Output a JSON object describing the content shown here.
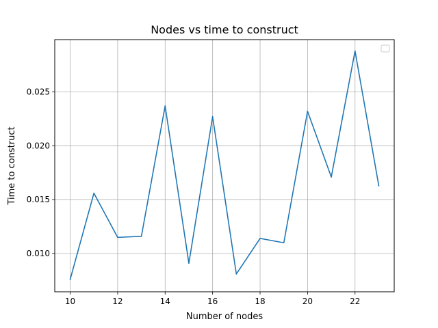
{
  "chart_data": {
    "type": "line",
    "title": "Nodes vs time to construct",
    "xlabel": "Number of nodes",
    "ylabel": "Time to construct",
    "xlim": [
      9.35,
      23.65
    ],
    "ylim": [
      0.00645,
      0.02985
    ],
    "xticks": [
      10,
      12,
      14,
      16,
      18,
      20,
      22
    ],
    "yticks": [
      0.01,
      0.015,
      0.02,
      0.025
    ],
    "ytick_labels": [
      "0.010",
      "0.015",
      "0.020",
      "0.025"
    ],
    "grid": true,
    "legend": {
      "placement": "top-right",
      "entries": []
    },
    "series": [
      {
        "color": "#1f77b4",
        "x": [
          10,
          11,
          12,
          13,
          14,
          15,
          16,
          17,
          18,
          19,
          20,
          21,
          22,
          23
        ],
        "y": [
          0.0076,
          0.0156,
          0.0115,
          0.0116,
          0.0237,
          0.0091,
          0.0227,
          0.0081,
          0.0114,
          0.011,
          0.0232,
          0.0171,
          0.0288,
          0.0163
        ]
      }
    ]
  }
}
